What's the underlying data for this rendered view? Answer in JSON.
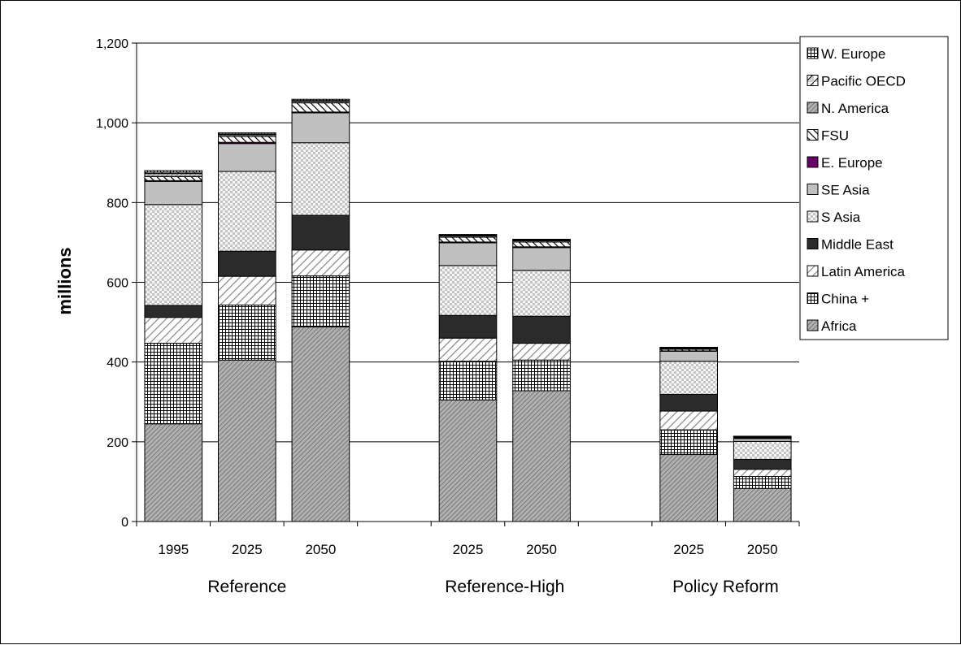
{
  "chart_data": {
    "type": "bar",
    "stacked": true,
    "ylabel": "millions",
    "ylim": [
      0,
      1200
    ],
    "yticks": [
      0,
      200,
      400,
      600,
      800,
      1000,
      1200
    ],
    "ytick_labels": [
      "0",
      "200",
      "400",
      "600",
      "800",
      "1,000",
      "1,200"
    ],
    "grid": true,
    "legend_position": "top-right",
    "groups": [
      {
        "label": "Reference",
        "years": [
          "1995",
          "2025",
          "2050"
        ]
      },
      {
        "label": "Reference-High",
        "years": [
          "2025",
          "2050"
        ]
      },
      {
        "label": "Policy Reform",
        "years": [
          "2025",
          "2050"
        ]
      }
    ],
    "series": [
      {
        "name": "Africa",
        "color": "#9a9a9a",
        "pattern": "diag-dense",
        "values": [
          245,
          405,
          488,
          305,
          328,
          168,
          83
        ]
      },
      {
        "name": "China +",
        "color": "#ffffff",
        "pattern": "grid-dense",
        "values": [
          202,
          138,
          128,
          97,
          77,
          62,
          30
        ]
      },
      {
        "name": "Latin America",
        "color": "#ffffff",
        "pattern": "diag-wide",
        "values": [
          65,
          72,
          65,
          58,
          42,
          47,
          18
        ]
      },
      {
        "name": "Middle East",
        "color": "#2b2b2b",
        "pattern": "solid",
        "values": [
          30,
          63,
          87,
          57,
          68,
          42,
          25
        ]
      },
      {
        "name": "S Asia",
        "color": "#e8e8e8",
        "pattern": "checker",
        "values": [
          253,
          200,
          182,
          125,
          115,
          83,
          45
        ]
      },
      {
        "name": "SE Asia",
        "color": "#c0c0c0",
        "pattern": "solid",
        "values": [
          58,
          70,
          75,
          57,
          57,
          25,
          7
        ]
      },
      {
        "name": "E. Europe",
        "color": "#660066",
        "pattern": "solid",
        "values": [
          2,
          3,
          2,
          2,
          2,
          1,
          1
        ]
      },
      {
        "name": "FSU",
        "color": "#ffffff",
        "pattern": "diag-bold",
        "values": [
          10,
          15,
          23,
          12,
          12,
          4,
          2
        ]
      },
      {
        "name": "N. America",
        "color": "#bfbfbf",
        "pattern": "diag-dense",
        "values": [
          8,
          4,
          4,
          3,
          3,
          2,
          1
        ]
      },
      {
        "name": "Pacific OECD",
        "color": "#ffffff",
        "pattern": "half",
        "values": [
          3,
          2,
          2,
          2,
          2,
          1,
          1
        ]
      },
      {
        "name": "W. Europe",
        "color": "#c8c8c8",
        "pattern": "grid-dense",
        "values": [
          4,
          3,
          3,
          2,
          2,
          2,
          1
        ]
      }
    ]
  }
}
